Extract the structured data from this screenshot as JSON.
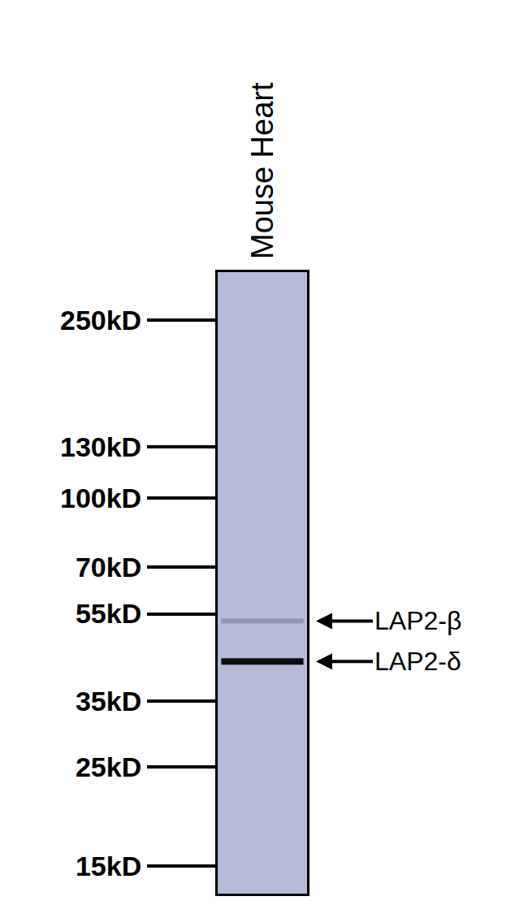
{
  "chart_data": {
    "type": "blot",
    "lane": "Mouse Heart",
    "log": "y",
    "ylim": [
      13,
      320
    ],
    "yticks": [
      {
        "value": 250,
        "label": "250kD"
      },
      {
        "value": 130,
        "label": "130kD"
      },
      {
        "value": 100,
        "label": "100kD"
      },
      {
        "value": 70,
        "label": "70kD"
      },
      {
        "value": 55,
        "label": "55kD"
      },
      {
        "value": 35,
        "label": "35kD"
      },
      {
        "value": 25,
        "label": "25kD"
      },
      {
        "value": 15,
        "label": "15kD"
      }
    ],
    "color": "#b5bbd8",
    "bands": [
      {
        "name": "LAP2-β",
        "value": 53,
        "color": "#8f96b4"
      },
      {
        "name": "LAP2-δ",
        "value": 43,
        "color": "#0d0d14"
      }
    ]
  }
}
